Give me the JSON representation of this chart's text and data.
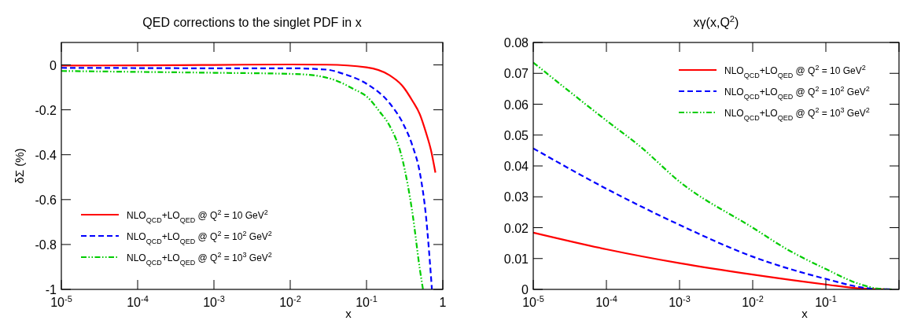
{
  "chart_data": [
    {
      "type": "line",
      "title": "QED corrections to the singlet PDF in x",
      "xlabel": "x",
      "ylabel": "δΣ (%)",
      "log": "x",
      "legend": "bottom left",
      "xlim": [
        1e-05,
        1
      ],
      "ylim": [
        -1,
        0.1
      ],
      "xticks": [
        {
          "value": 1e-05,
          "label": "10$^{-5}$"
        },
        {
          "value": 0.0001,
          "label": "10$^{-4}$"
        },
        {
          "value": 0.001,
          "label": "10$^{-3}$"
        },
        {
          "value": 0.01,
          "label": "10$^{-2}$"
        },
        {
          "value": 0.1,
          "label": "10$^{-1}$"
        },
        1
      ],
      "yticks": [
        -1,
        -0.8,
        -0.6,
        -0.4,
        -0.2,
        0
      ],
      "series": [
        {
          "name": "NLO$_{QCD}$+LO$_{QED}$ @ Q$^{2}$ = 10 GeV$^{2}$",
          "color": "#ff0000",
          "line_style": "solid",
          "x": [
            1e-05,
            0.0001,
            0.001,
            0.01,
            0.03,
            0.1,
            0.2,
            0.3,
            0.4,
            0.5,
            0.6,
            0.7,
            0.8
          ],
          "values": [
            -0.003,
            -0.002,
            0,
            0.002,
            0.001,
            -0.011,
            -0.046,
            -0.096,
            -0.16,
            -0.22,
            -0.3,
            -0.38,
            -0.48
          ]
        },
        {
          "name": "NLO$_{QCD}$+LO$_{QED}$ @ Q$^{2}$ = 10$^{2}$ GeV$^{2}$",
          "color": "#0000ff",
          "line_style": "dashed",
          "x": [
            1e-05,
            0.0001,
            0.001,
            0.01,
            0.03,
            0.05,
            0.1,
            0.2,
            0.3,
            0.4,
            0.5,
            0.6,
            0.72
          ],
          "values": [
            -0.013,
            -0.014,
            -0.015,
            -0.015,
            -0.021,
            -0.04,
            -0.084,
            -0.17,
            -0.26,
            -0.36,
            -0.48,
            -0.67,
            -1
          ]
        },
        {
          "name": "NLO$_{QCD}$+LO$_{QED}$ @ Q$^{2}$ = 10$^{3}$ GeV$^{2}$",
          "color": "#00cc00",
          "line_style": "dotted",
          "x": [
            1e-05,
            0.0001,
            0.001,
            0.01,
            0.02,
            0.04,
            0.07,
            0.1,
            0.15,
            0.2,
            0.3,
            0.4,
            0.5,
            0.55
          ],
          "values": [
            -0.027,
            -0.031,
            -0.035,
            -0.04,
            -0.046,
            -0.07,
            -0.11,
            -0.14,
            -0.21,
            -0.27,
            -0.43,
            -0.66,
            -0.91,
            -1
          ]
        }
      ]
    },
    {
      "type": "line",
      "title": "xγ(x,Q$^{2}$)",
      "xlabel": "x",
      "log": "x",
      "legend": "top right",
      "xlim": [
        1e-05,
        1
      ],
      "ylim": [
        0,
        0.08
      ],
      "xticks": [
        {
          "value": 1e-05,
          "label": "10$^{-5}$"
        },
        {
          "value": 0.0001,
          "label": "10$^{-4}$"
        },
        {
          "value": 0.001,
          "label": "10$^{-3}$"
        },
        {
          "value": 0.01,
          "label": "10$^{-2}$"
        },
        {
          "value": 0.1,
          "label": "10$^{-1}$"
        },
        {
          "value": 1,
          "label": null
        }
      ],
      "yticks": [
        0,
        0.01,
        0.02,
        0.03,
        0.04,
        0.05,
        0.06,
        0.07,
        0.08
      ],
      "series": [
        {
          "name": "NLO$_{QCD}$+LO$_{QED}$ @ Q$^{2}$ = 10 GeV$^{2}$",
          "color": "#ff0000",
          "line_style": "solid",
          "x": [
            1e-05,
            0.0001,
            0.001,
            0.01,
            0.1,
            0.3,
            0.8
          ],
          "values": [
            0.0184,
            0.013,
            0.0085,
            0.0048,
            0.0016,
            0.0003,
            0
          ]
        },
        {
          "name": "NLO$_{QCD}$+LO$_{QED}$ @ Q$^{2}$ = 10$^{2}$ GeV$^{2}$",
          "color": "#0000ff",
          "line_style": "dashed",
          "x": [
            1e-05,
            0.0001,
            0.001,
            0.01,
            0.1,
            0.3,
            0.5,
            0.8
          ],
          "values": [
            0.0457,
            0.0326,
            0.0209,
            0.0106,
            0.0034,
            0.0007,
            0.0001,
            0
          ]
        },
        {
          "name": "NLO$_{QCD}$+LO$_{QED}$ @ Q$^{2}$ = 10$^{3}$ GeV$^{2}$",
          "color": "#00cc00",
          "line_style": "dotted",
          "x": [
            1e-05,
            0.0001,
            0.0003,
            0.001,
            0.01,
            0.03,
            0.1,
            0.3,
            0.5,
            0.8
          ],
          "values": [
            0.0735,
            0.0547,
            0.046,
            0.0349,
            0.02,
            0.0129,
            0.0066,
            0.0016,
            0.0003,
            0
          ]
        }
      ]
    }
  ]
}
